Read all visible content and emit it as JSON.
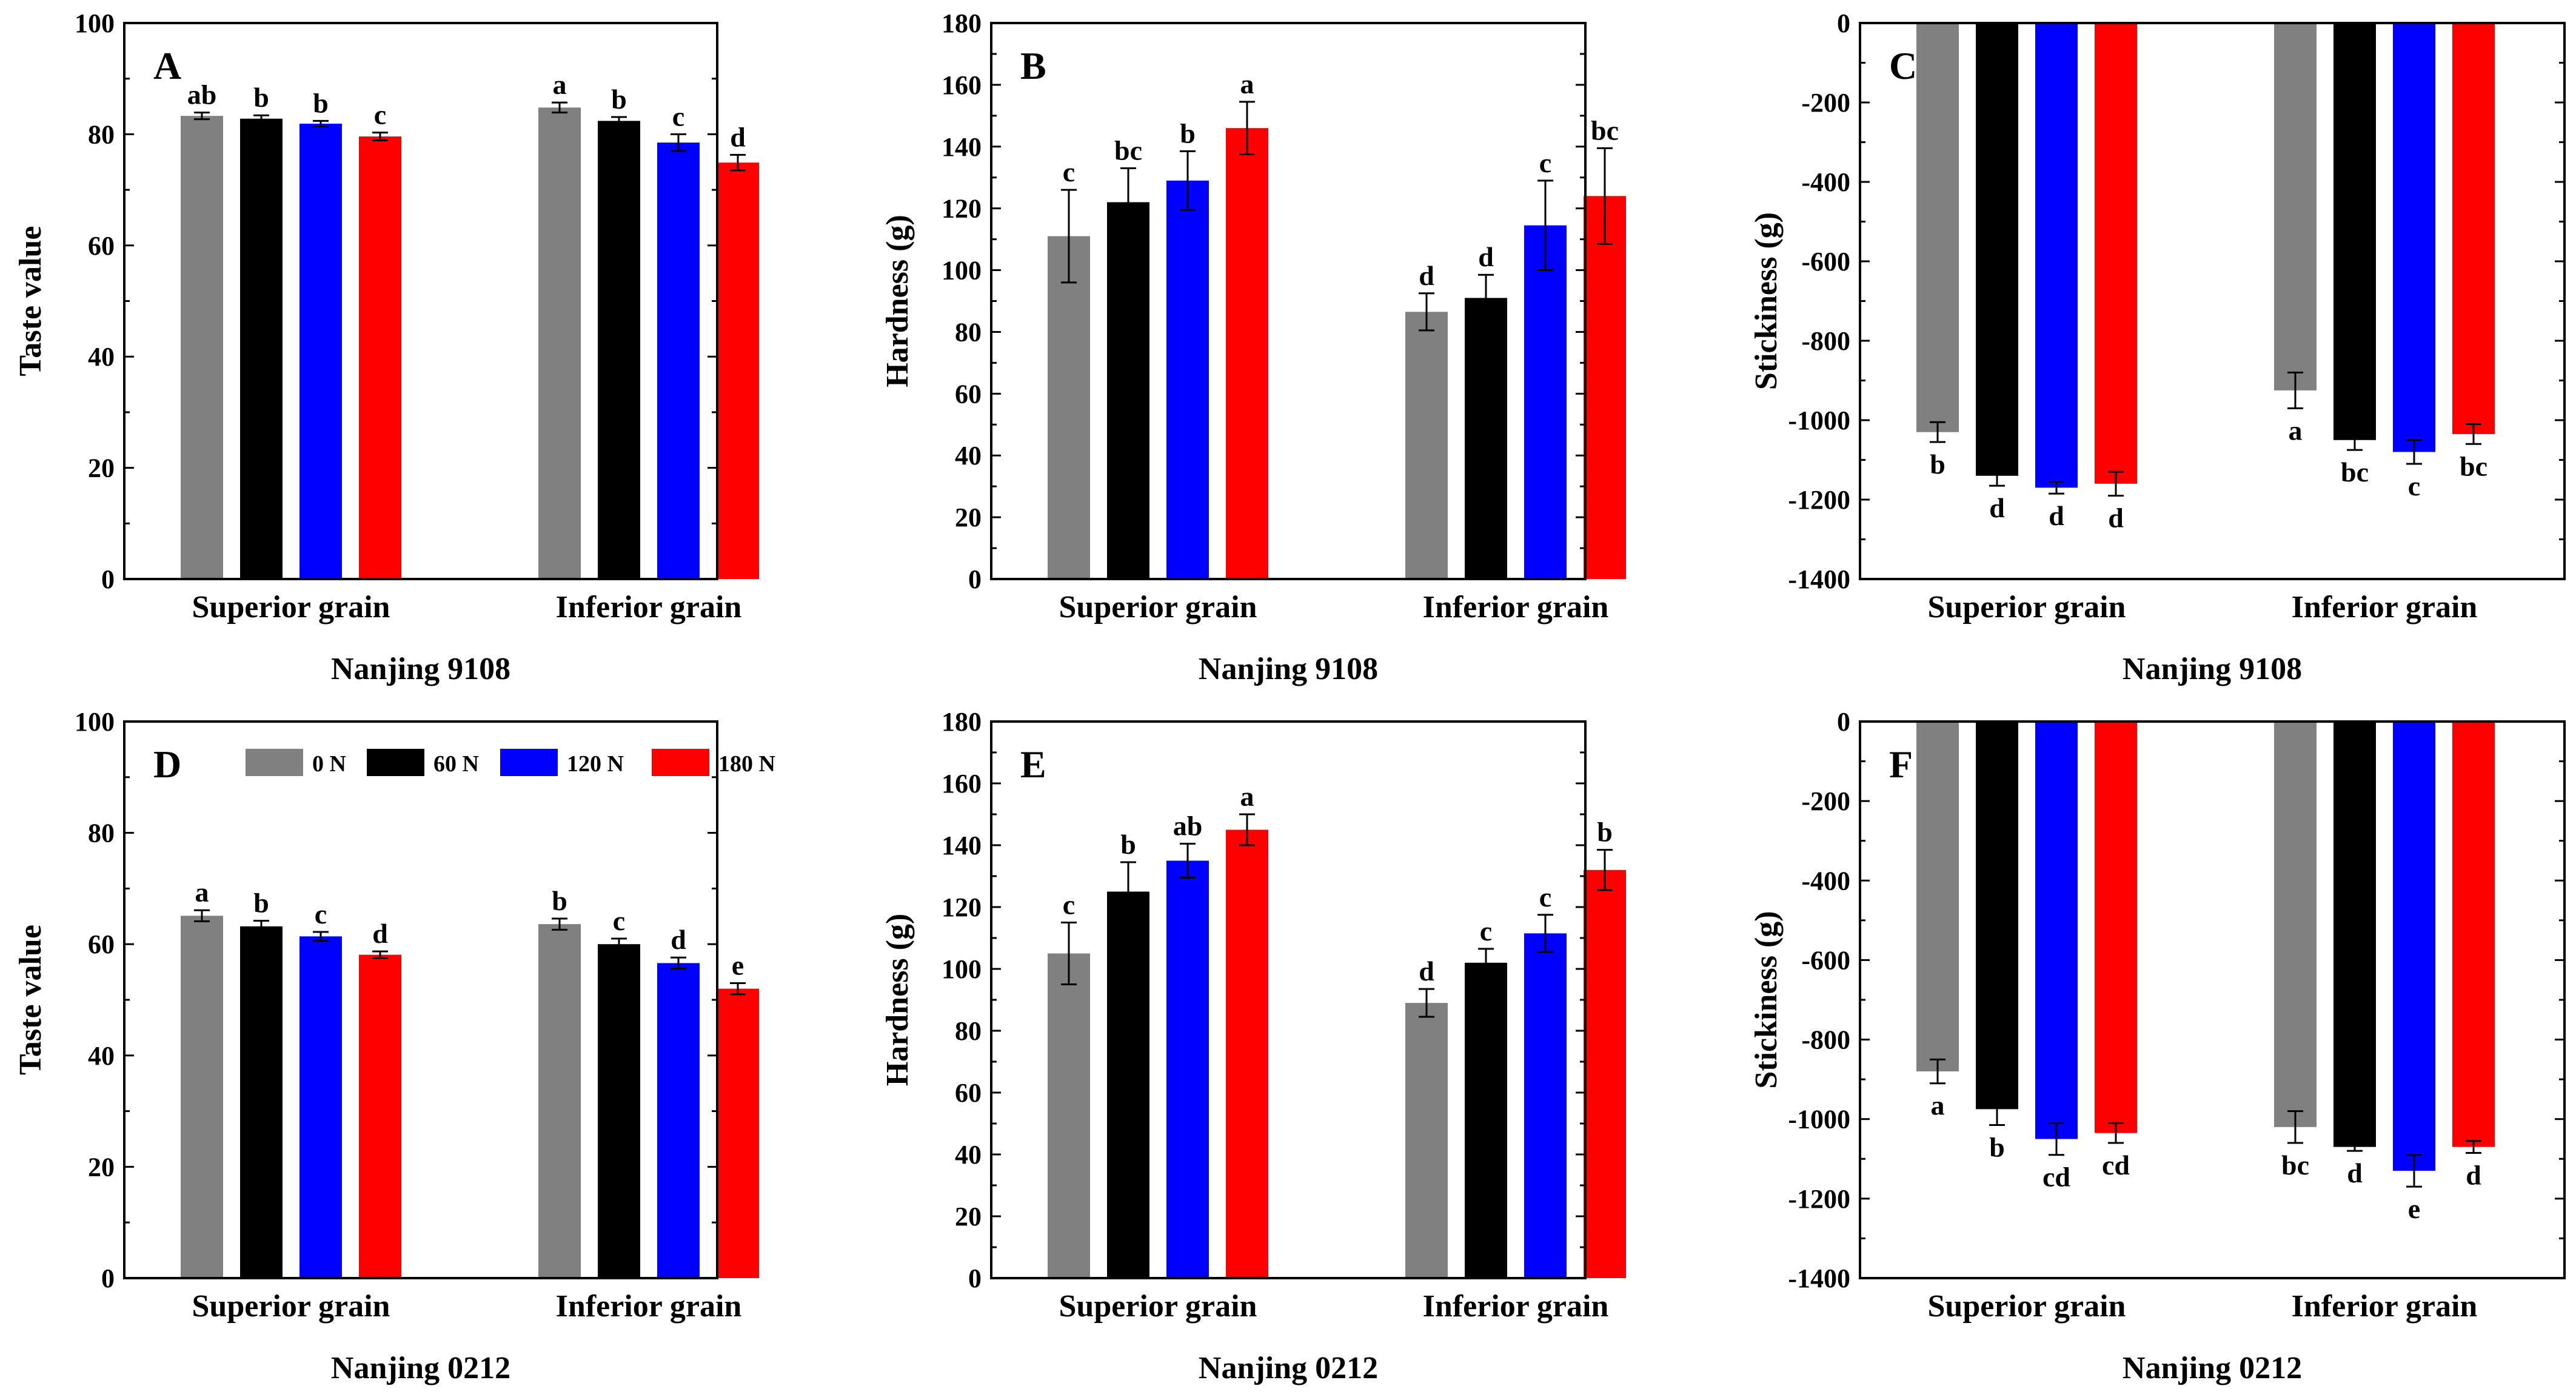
{
  "colors": {
    "0 N": "#808080",
    "60 N": "#000000",
    "120 N": "#0000FF",
    "180 N": "#FF0000"
  },
  "legend": {
    "entries": [
      "0 N",
      "60 N",
      "120 N",
      "180 N"
    ]
  },
  "chart_data": [
    {
      "type": "bar",
      "panel": "A",
      "ylabel": "Taste value",
      "xlabel": "Nanjing 9108",
      "ylim": [
        0,
        100
      ],
      "yticks": [
        0,
        20,
        40,
        60,
        80,
        100
      ],
      "categories": [
        "Superior grain",
        "Inferior grain"
      ],
      "series": [
        {
          "name": "0 N",
          "values": [
            83.3,
            84.8
          ],
          "errors": [
            0.6,
            0.9
          ],
          "letters": [
            "ab",
            "a"
          ]
        },
        {
          "name": "60 N",
          "values": [
            82.8,
            82.4
          ],
          "errors": [
            0.6,
            0.7
          ],
          "letters": [
            "b",
            "b"
          ]
        },
        {
          "name": "120 N",
          "values": [
            81.9,
            78.5
          ],
          "errors": [
            0.5,
            1.5
          ],
          "letters": [
            "b",
            "c"
          ]
        },
        {
          "name": "180 N",
          "values": [
            79.6,
            74.9
          ],
          "errors": [
            0.7,
            1.4
          ],
          "letters": [
            "c",
            "d"
          ]
        }
      ]
    },
    {
      "type": "bar",
      "panel": "B",
      "ylabel": "Hardness (g)",
      "xlabel": "Nanjing 9108",
      "ylim": [
        0,
        180
      ],
      "yticks": [
        0,
        20,
        40,
        60,
        80,
        100,
        120,
        140,
        160,
        180
      ],
      "categories": [
        "Superior grain",
        "Inferior grain"
      ],
      "series": [
        {
          "name": "0 N",
          "values": [
            111,
            86.5
          ],
          "errors": [
            15,
            6
          ],
          "letters": [
            "c",
            "d"
          ]
        },
        {
          "name": "60 N",
          "values": [
            122,
            91
          ],
          "errors": [
            11,
            7.5
          ],
          "letters": [
            "bc",
            "d"
          ]
        },
        {
          "name": "120 N",
          "values": [
            129,
            114.5
          ],
          "errors": [
            9.5,
            14.5
          ],
          "letters": [
            "b",
            "c"
          ]
        },
        {
          "name": "180 N",
          "values": [
            146,
            124
          ],
          "errors": [
            8.5,
            15.5
          ],
          "letters": [
            "a",
            "bc"
          ]
        }
      ]
    },
    {
      "type": "bar",
      "panel": "C",
      "ylabel": "Stickiness (g)",
      "xlabel": "Nanjing 9108",
      "ylim": [
        -1400,
        0
      ],
      "yticks": [
        0,
        -200,
        -400,
        -600,
        -800,
        -1000,
        -1200,
        -1400
      ],
      "categories": [
        "Superior grain",
        "Inferior grain"
      ],
      "series": [
        {
          "name": "0 N",
          "values": [
            -1030,
            -925
          ],
          "errors": [
            25,
            45
          ],
          "letters": [
            "b",
            "a"
          ]
        },
        {
          "name": "60 N",
          "values": [
            -1140,
            -1050
          ],
          "errors": [
            25,
            25
          ],
          "letters": [
            "d",
            "bc"
          ]
        },
        {
          "name": "120 N",
          "values": [
            -1170,
            -1080
          ],
          "errors": [
            15,
            30
          ],
          "letters": [
            "d",
            "c"
          ]
        },
        {
          "name": "180 N",
          "values": [
            -1160,
            -1035
          ],
          "errors": [
            30,
            25
          ],
          "letters": [
            "d",
            "bc"
          ]
        }
      ]
    },
    {
      "type": "bar",
      "panel": "D",
      "ylabel": "Taste value",
      "xlabel": "Nanjing 0212",
      "ylim": [
        0,
        100
      ],
      "yticks": [
        0,
        20,
        40,
        60,
        80,
        100
      ],
      "categories": [
        "Superior grain",
        "Inferior grain"
      ],
      "series": [
        {
          "name": "0 N",
          "values": [
            65.1,
            63.6
          ],
          "errors": [
            1.0,
            1.0
          ],
          "letters": [
            "a",
            "b"
          ]
        },
        {
          "name": "60 N",
          "values": [
            63.2,
            60.0
          ],
          "errors": [
            1.0,
            1.0
          ],
          "letters": [
            "b",
            "c"
          ]
        },
        {
          "name": "120 N",
          "values": [
            61.4,
            56.6
          ],
          "errors": [
            0.8,
            1.0
          ],
          "letters": [
            "c",
            "d"
          ]
        },
        {
          "name": "180 N",
          "values": [
            58.1,
            52.0
          ],
          "errors": [
            0.6,
            1.0
          ],
          "letters": [
            "d",
            "e"
          ]
        }
      ]
    },
    {
      "type": "bar",
      "panel": "E",
      "ylabel": "Hardness (g)",
      "xlabel": "Nanjing 0212",
      "ylim": [
        0,
        180
      ],
      "yticks": [
        0,
        20,
        40,
        60,
        80,
        100,
        120,
        140,
        160,
        180
      ],
      "categories": [
        "Superior grain",
        "Inferior grain"
      ],
      "series": [
        {
          "name": "0 N",
          "values": [
            105,
            89
          ],
          "errors": [
            10,
            4.5
          ],
          "letters": [
            "c",
            "d"
          ]
        },
        {
          "name": "60 N",
          "values": [
            125,
            102
          ],
          "errors": [
            9.5,
            4.5
          ],
          "letters": [
            "b",
            "c"
          ]
        },
        {
          "name": "120 N",
          "values": [
            135,
            111.5
          ],
          "errors": [
            5.5,
            6
          ],
          "letters": [
            "ab",
            "c"
          ]
        },
        {
          "name": "180 N",
          "values": [
            145,
            132
          ],
          "errors": [
            5,
            6.5
          ],
          "letters": [
            "a",
            "b"
          ]
        }
      ]
    },
    {
      "type": "bar",
      "panel": "F",
      "ylabel": "Stickiness (g)",
      "xlabel": "Nanjing 0212",
      "ylim": [
        -1400,
        0
      ],
      "yticks": [
        0,
        -200,
        -400,
        -600,
        -800,
        -1000,
        -1200,
        -1400
      ],
      "categories": [
        "Superior grain",
        "Inferior grain"
      ],
      "series": [
        {
          "name": "0 N",
          "values": [
            -880,
            -1020
          ],
          "errors": [
            30,
            40
          ],
          "letters": [
            "a",
            "bc"
          ]
        },
        {
          "name": "60 N",
          "values": [
            -975,
            -1070
          ],
          "errors": [
            40,
            10
          ],
          "letters": [
            "b",
            "d"
          ]
        },
        {
          "name": "120 N",
          "values": [
            -1050,
            -1130
          ],
          "errors": [
            40,
            40
          ],
          "letters": [
            "cd",
            "e"
          ]
        },
        {
          "name": "180 N",
          "values": [
            -1035,
            -1070
          ],
          "errors": [
            25,
            15
          ],
          "letters": [
            "cd",
            "d"
          ]
        }
      ]
    }
  ]
}
